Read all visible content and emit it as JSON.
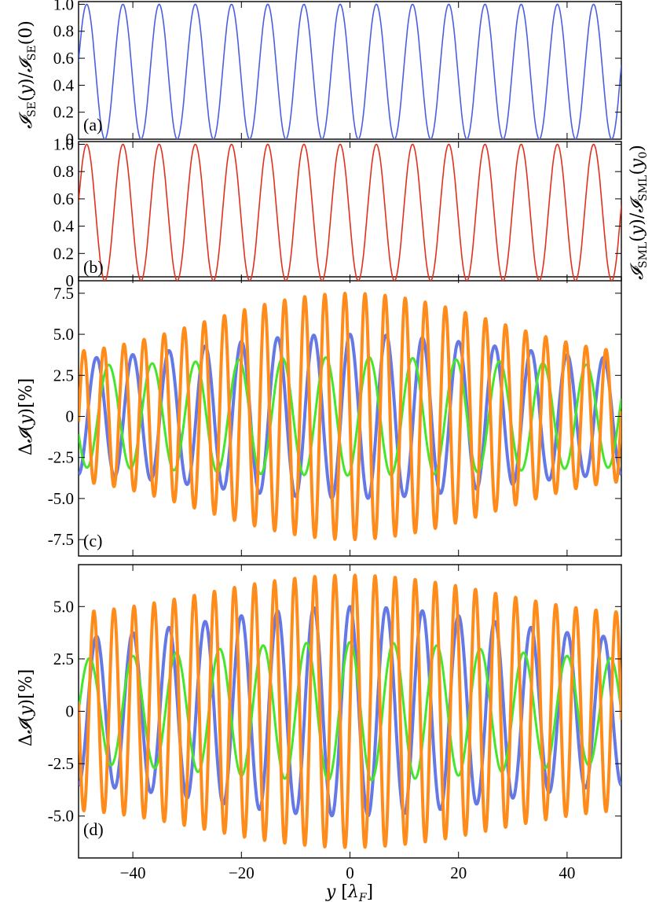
{
  "chart_data": [
    {
      "panel": "(a)",
      "type": "line",
      "ylabel": "𝓘SE(y)/𝓘SE(0)",
      "xlim": [
        -50,
        50
      ],
      "ylim": [
        0,
        1.02
      ],
      "yticks": [
        0,
        0.2,
        0.4,
        0.6,
        0.8,
        1.0
      ],
      "ytick_labels": [
        "0",
        "0.2",
        "0.4",
        "0.6",
        "0.8",
        "1.0"
      ],
      "series": [
        {
          "color": "#4a5fe0",
          "width": 1.6,
          "func": "cos2",
          "amplitude": 1.0,
          "wavelength_lambdaF": 6.67,
          "phase_shift_lambdaF": 0
        }
      ]
    },
    {
      "panel": "(b)",
      "type": "line",
      "ylabel": "𝓘SML(y)/𝓘SML(y0)",
      "xlim": [
        -50,
        50
      ],
      "ylim": [
        0,
        1.02
      ],
      "yticks": [
        0,
        0.2,
        0.4,
        0.6,
        0.8,
        1.0
      ],
      "ytick_labels": [
        "0",
        "0.2",
        "0.4",
        "0.6",
        "0.8",
        "1.0"
      ],
      "series": [
        {
          "color": "#e0301e",
          "width": 1.6,
          "func": "cos2",
          "amplitude": 1.0,
          "wavelength_lambdaF": 6.67,
          "phase_shift_lambdaF": 0
        }
      ]
    },
    {
      "panel": "(c)",
      "type": "line",
      "ylabel": "ΔI(y)[%]",
      "xlim": [
        -50,
        50
      ],
      "ylim": [
        -8.5,
        8.5
      ],
      "yticks": [
        -7.5,
        -5.0,
        -2.5,
        0,
        2.5,
        5.0,
        7.5
      ],
      "ytick_labels": [
        "-7.5",
        "-5.0",
        "-2.5",
        "0",
        "2.5",
        "5.0",
        "7.5"
      ],
      "series": [
        {
          "color": "#6478e6",
          "width": 4,
          "envelope": [
            3.5,
            5.0
          ],
          "period_lambdaF": 6.67,
          "phase_deg": 0
        },
        {
          "color": "#44e62c",
          "width": 3,
          "envelope": [
            3.1,
            3.6
          ],
          "period_lambdaF": 8.0,
          "phase_deg": 200
        },
        {
          "color": "#ff8c1a",
          "width": 4,
          "envelope": [
            3.9,
            7.5
          ],
          "period_lambdaF": 3.7,
          "phase_deg": 90
        }
      ]
    },
    {
      "panel": "(d)",
      "type": "line",
      "ylabel": "ΔI(y)[%]",
      "xlabel": "y [λF]",
      "xlim": [
        -50,
        50
      ],
      "ylim": [
        -7.0,
        7.0
      ],
      "yticks": [
        -5.0,
        -2.5,
        0,
        2.5,
        5.0
      ],
      "ytick_labels": [
        "-5.0",
        "-2.5",
        "0",
        "2.5",
        "5.0"
      ],
      "xticks": [
        -40,
        -20,
        0,
        20,
        40
      ],
      "xtick_labels": [
        "−40",
        "−20",
        "0",
        "20",
        "40"
      ],
      "series": [
        {
          "color": "#6478e6",
          "width": 4,
          "envelope": [
            3.5,
            5.0
          ],
          "period_lambdaF": 6.67,
          "phase_deg": 0
        },
        {
          "color": "#44e62c",
          "width": 3,
          "envelope": [
            2.5,
            3.3
          ],
          "period_lambdaF": 8.0,
          "phase_deg": 0
        },
        {
          "color": "#ff8c1a",
          "width": 4,
          "envelope": [
            4.7,
            6.5
          ],
          "period_lambdaF": 3.7,
          "phase_deg": 270
        }
      ]
    }
  ],
  "labels": {
    "panel_a": "(a)",
    "panel_b": "(b)",
    "panel_c": "(c)",
    "panel_d": "(d)",
    "ylabel_a_main": "𝓘",
    "ylabel_a_rest": "(y)/",
    "ylabel_a_sub": "SE",
    "ylabel_a_end": "(0)",
    "ylabel_b": "𝓘SML(y)/𝓘SML(y0)",
    "ylabel_c": "Δ𝓘(y)[%]",
    "ylabel_d": "Δ𝓘(y)[%]",
    "xlabel": "y [λF]"
  }
}
